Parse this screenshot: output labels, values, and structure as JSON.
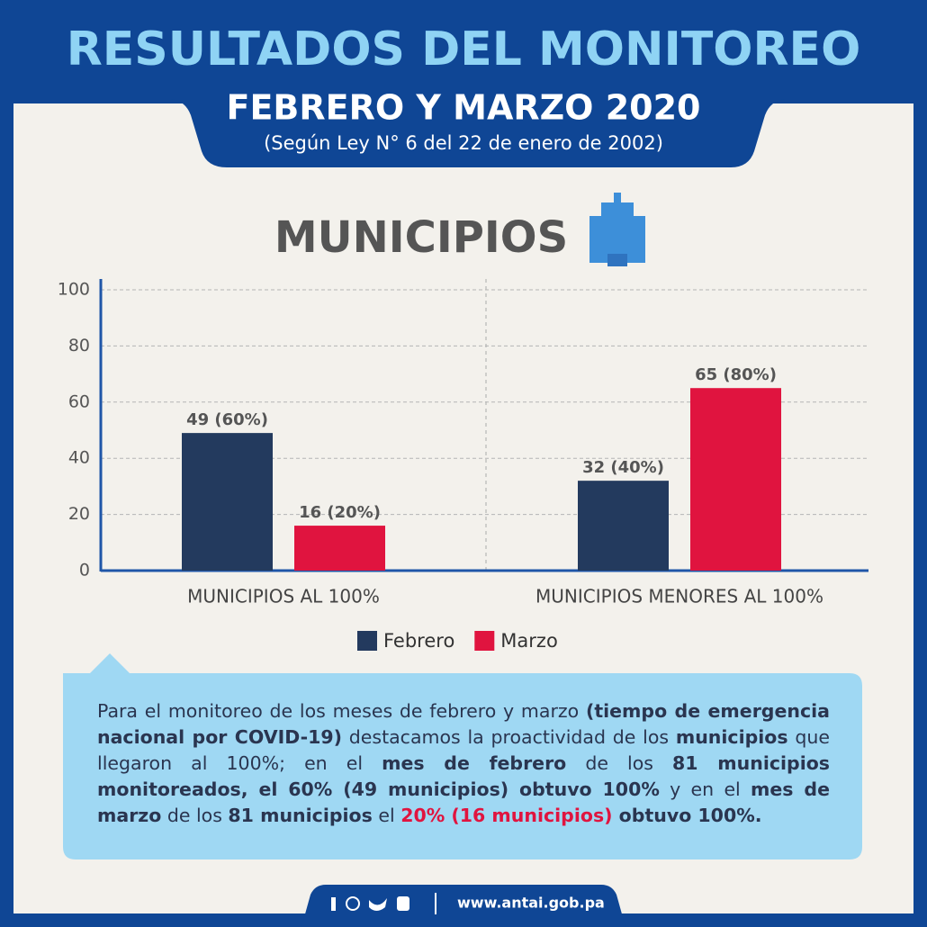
{
  "header": {
    "title": "RESULTADOS DEL MONITOREO",
    "subtitle": "FEBRERO Y MARZO 2020",
    "note": "(Según Ley N° 6 del 22 de enero de 2002)"
  },
  "chart_data": {
    "type": "bar",
    "title": "MUNICIPIOS",
    "categories": [
      "MUNICIPIOS AL 100%",
      "MUNICIPIOS MENORES AL 100%"
    ],
    "series": [
      {
        "name": "Febrero",
        "color": "#233a5e",
        "values": [
          49,
          32
        ],
        "value_labels": [
          "49 (60%)",
          "32 (40%)"
        ]
      },
      {
        "name": "Marzo",
        "color": "#e0143f",
        "values": [
          16,
          65
        ],
        "value_labels": [
          "16 (20%)",
          "65 (80%)"
        ]
      }
    ],
    "ylim": [
      0,
      100
    ],
    "yticks": [
      0,
      20,
      40,
      60,
      80,
      100
    ],
    "grid": true,
    "legend": "bottom"
  },
  "summary": {
    "segments": [
      {
        "text": "Para el monitoreo de los meses de febrero y marzo ",
        "bold": false
      },
      {
        "text": "(tiempo de emergencia nacional por COVID-19)",
        "bold": true
      },
      {
        "text": " destacamos la proactividad de los ",
        "bold": false
      },
      {
        "text": "municipios",
        "bold": true
      },
      {
        "text": " que llegaron al 100%; en el ",
        "bold": false
      },
      {
        "text": "mes de febrero",
        "bold": true
      },
      {
        "text": " de los ",
        "bold": false
      },
      {
        "text": "81 municipios monitoreados, el 60% (49 municipios) obtuvo 100%",
        "bold": true
      },
      {
        "text": " y en el ",
        "bold": false
      },
      {
        "text": "mes de marzo",
        "bold": true
      },
      {
        "text": " de los ",
        "bold": false
      },
      {
        "text": "81 municipios",
        "bold": true
      },
      {
        "text": " el ",
        "bold": false
      },
      {
        "text": "20% (16 municipios)",
        "bold": true,
        "color": "#e0143f"
      },
      {
        "text": "  obtuvo 100%.",
        "bold": true
      }
    ]
  },
  "footer": {
    "url": "www.antai.gob.pa"
  }
}
